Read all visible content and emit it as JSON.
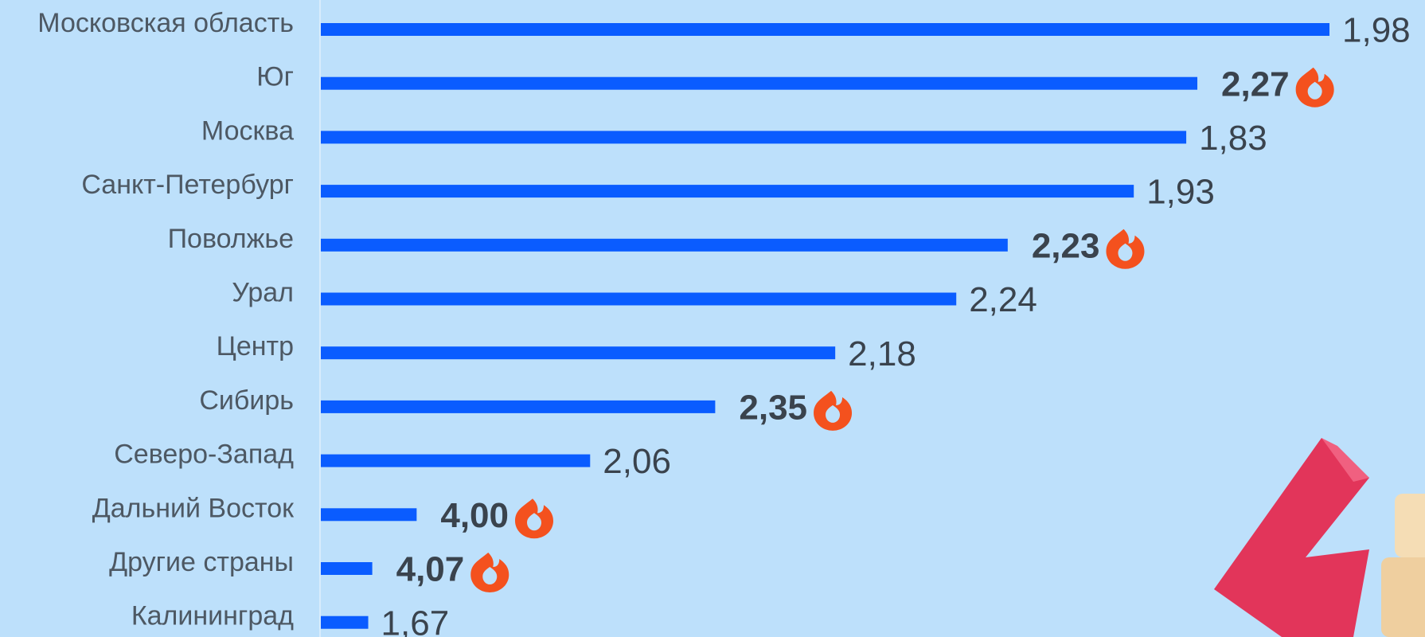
{
  "chart_data": {
    "type": "hbar",
    "categories": [
      "Московская область",
      "Юг",
      "Москва",
      "Санкт-Петербург",
      "Поволжье",
      "Урал",
      "Центр",
      "Сибирь",
      "Северо-Запад",
      "Дальний Восток",
      "Другие страны",
      "Калининград"
    ],
    "values": [
      100,
      86.9,
      85.8,
      80.6,
      68.1,
      63.0,
      51.0,
      39.1,
      26.7,
      9.5,
      5.1,
      4.7
    ],
    "xlim": [
      0,
      100
    ],
    "color": "#0a5cff",
    "bar_texts": [
      "1,98",
      "2,27",
      "1,83",
      "1,93",
      "2,23",
      "2,24",
      "2,18",
      "2,35",
      "2,06",
      "4,00",
      "4,07",
      "1,67"
    ],
    "highlighted": [
      false,
      true,
      false,
      false,
      true,
      false,
      false,
      true,
      false,
      true,
      true,
      false
    ],
    "highlight_color": "#f4511e"
  }
}
